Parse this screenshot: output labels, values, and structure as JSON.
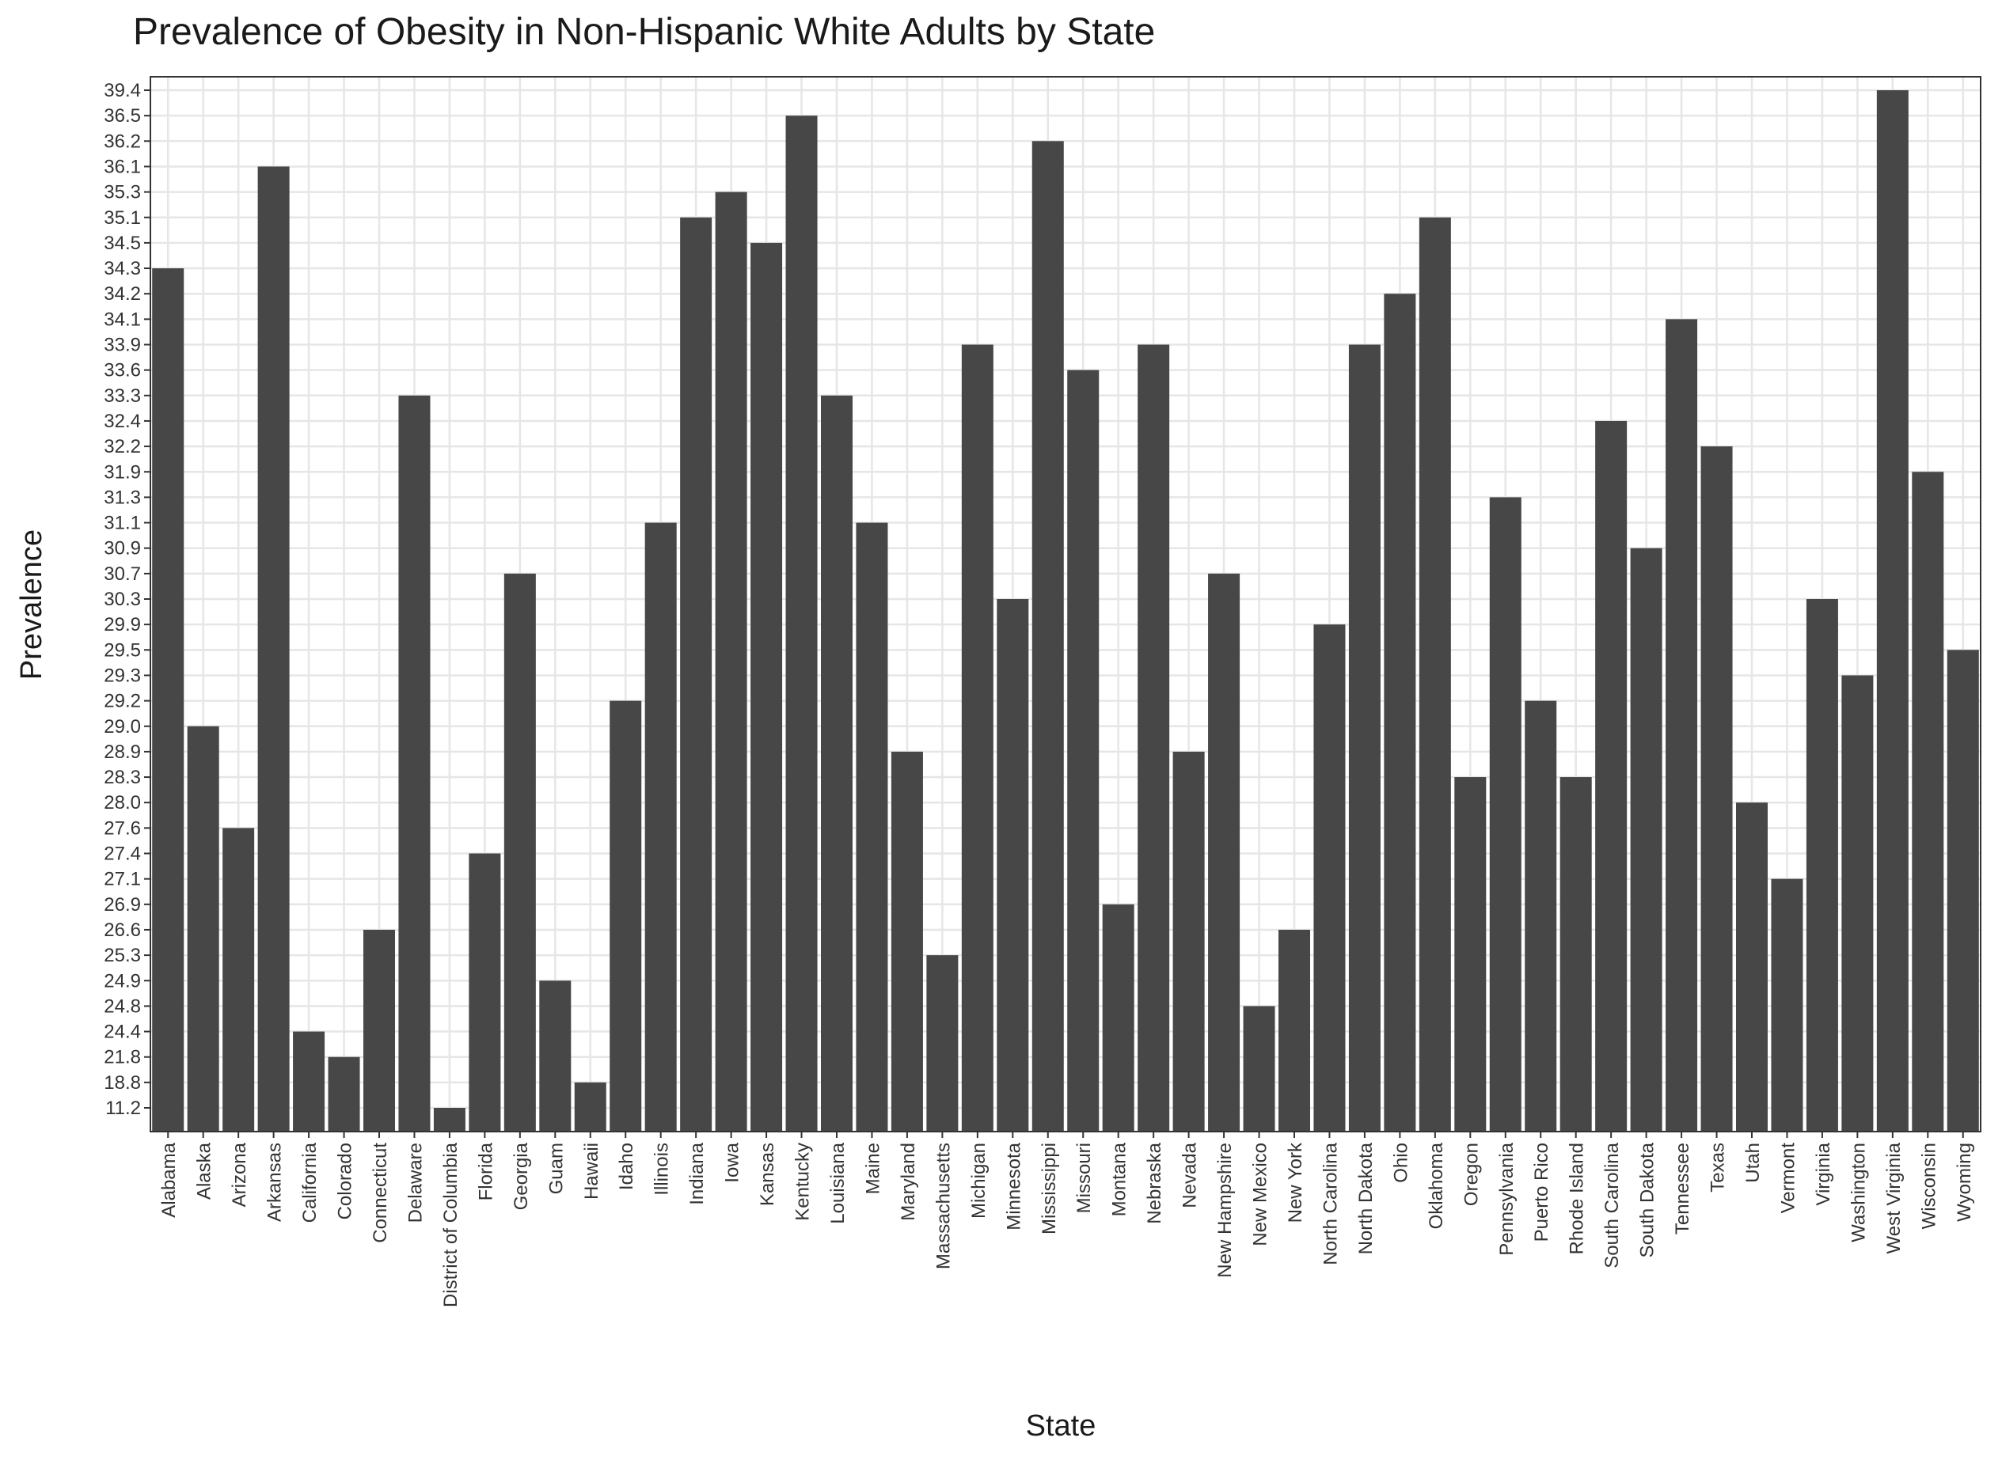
{
  "colors": {
    "bar": "#474747",
    "grid": "#e6e6e6",
    "panel_border": "#333333",
    "background": "#ffffff"
  },
  "chart_data": {
    "type": "bar",
    "title": "Prevalence of Obesity in Non-Hispanic White Adults by State",
    "xlabel": "State",
    "ylabel": "Prevalence",
    "grid": true,
    "legend": "none",
    "y_scale": "categorical",
    "y_ticks": [
      "11.2",
      "18.8",
      "21.8",
      "24.4",
      "24.8",
      "24.9",
      "25.3",
      "26.6",
      "26.9",
      "27.1",
      "27.4",
      "27.6",
      "28.0",
      "28.3",
      "28.9",
      "29.0",
      "29.2",
      "29.3",
      "29.5",
      "29.9",
      "30.3",
      "30.7",
      "30.9",
      "31.1",
      "31.3",
      "31.9",
      "32.2",
      "32.4",
      "33.3",
      "33.6",
      "33.9",
      "34.1",
      "34.2",
      "34.3",
      "34.5",
      "35.1",
      "35.3",
      "36.1",
      "36.2",
      "36.5",
      "39.4"
    ],
    "categories": [
      "Alabama",
      "Alaska",
      "Arizona",
      "Arkansas",
      "California",
      "Colorado",
      "Connecticut",
      "Delaware",
      "District of Columbia",
      "Florida",
      "Georgia",
      "Guam",
      "Hawaii",
      "Idaho",
      "Illinois",
      "Indiana",
      "Iowa",
      "Kansas",
      "Kentucky",
      "Louisiana",
      "Maine",
      "Maryland",
      "Massachusetts",
      "Michigan",
      "Minnesota",
      "Mississippi",
      "Missouri",
      "Montana",
      "Nebraska",
      "Nevada",
      "New Hampshire",
      "New Mexico",
      "New York",
      "North Carolina",
      "North Dakota",
      "Ohio",
      "Oklahoma",
      "Oregon",
      "Pennsylvania",
      "Puerto Rico",
      "Rhode Island",
      "South Carolina",
      "South Dakota",
      "Tennessee",
      "Texas",
      "Utah",
      "Vermont",
      "Virginia",
      "Washington",
      "West Virginia",
      "Wisconsin",
      "Wyoming"
    ],
    "values": [
      34.3,
      29.0,
      27.6,
      36.1,
      24.4,
      21.8,
      26.6,
      33.3,
      11.2,
      27.4,
      30.7,
      24.9,
      18.8,
      29.2,
      31.1,
      35.1,
      35.3,
      34.5,
      36.5,
      33.3,
      31.1,
      28.9,
      25.3,
      33.9,
      30.3,
      36.2,
      33.6,
      26.9,
      33.9,
      28.9,
      30.7,
      24.8,
      26.6,
      29.9,
      33.9,
      34.2,
      35.1,
      28.3,
      31.3,
      29.2,
      28.3,
      32.4,
      30.9,
      34.1,
      32.2,
      28.0,
      27.1,
      30.3,
      29.3,
      39.4,
      31.9,
      29.5
    ]
  }
}
